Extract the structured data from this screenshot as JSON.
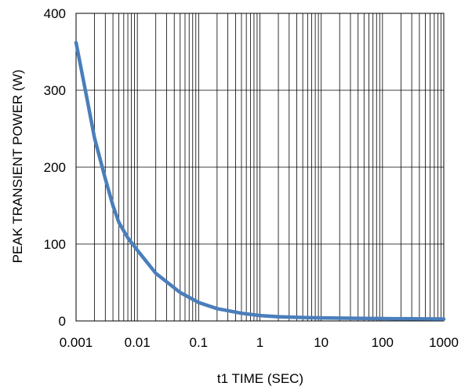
{
  "chart_data": {
    "type": "line",
    "xlabel": "t1 TIME (SEC)",
    "ylabel": "PEAK TRANSIENT POWER (W)",
    "xscale": "log",
    "xlim": [
      0.001,
      1000
    ],
    "ylim": [
      0,
      400
    ],
    "x_ticks": [
      "0.001",
      "0.01",
      "0.1",
      "1",
      "10",
      "100",
      "1000"
    ],
    "y_ticks": [
      "0",
      "100",
      "200",
      "300",
      "400"
    ],
    "grid": true,
    "series": [
      {
        "color": "#4a7ebb",
        "x": [
          0.001,
          0.0015,
          0.002,
          0.003,
          0.004,
          0.005,
          0.007,
          0.01,
          0.02,
          0.05,
          0.1,
          0.2,
          0.5,
          1,
          2,
          5,
          10,
          100,
          1000
        ],
        "y": [
          362,
          290,
          238,
          185,
          150,
          128,
          108,
          92,
          62,
          37,
          24,
          16,
          10,
          7,
          5.5,
          4.5,
          4,
          3,
          2.5
        ]
      }
    ]
  }
}
